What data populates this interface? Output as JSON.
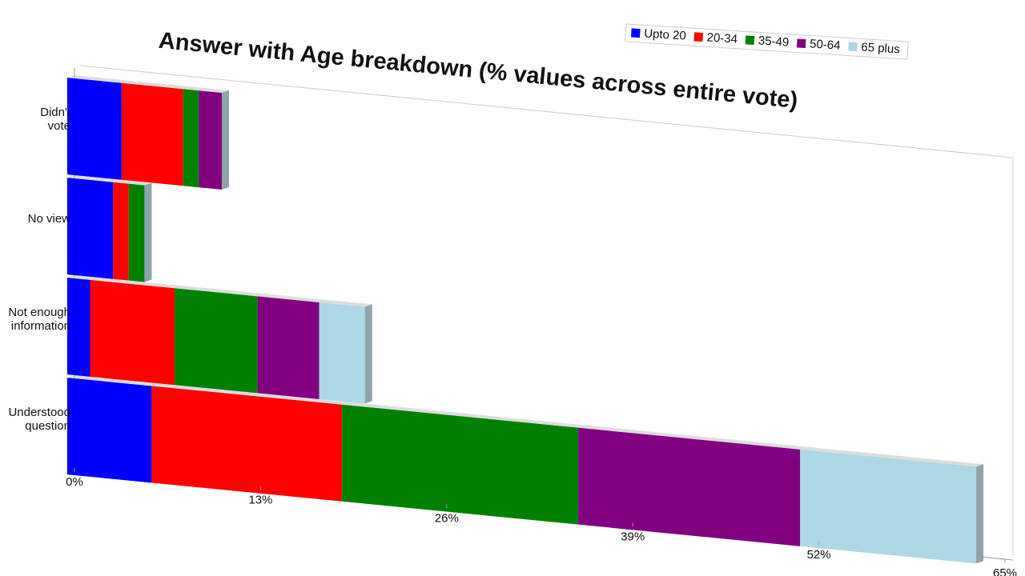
{
  "chart_data": {
    "type": "bar",
    "stacked": true,
    "orientation": "horizontal",
    "title": "Answer with Age breakdown (% values across entire vote)",
    "categories": [
      "Didn't\nvote",
      "No view",
      "Not enough\ninformation",
      "Understood\nquestion"
    ],
    "series": [
      {
        "name": "Upto 20",
        "color": "#0000ff",
        "values": [
          3.8,
          3.2,
          1.6,
          5.9
        ]
      },
      {
        "name": "20-34",
        "color": "#ff0000",
        "values": [
          4.3,
          1.1,
          5.9,
          13.3
        ]
      },
      {
        "name": "35-49",
        "color": "#008000",
        "values": [
          1.1,
          1.1,
          5.8,
          16.5
        ]
      },
      {
        "name": "50-64",
        "color": "#800080",
        "values": [
          1.6,
          0,
          4.3,
          15.5
        ]
      },
      {
        "name": "65 plus",
        "color": "#add8e6",
        "values": [
          0,
          0,
          3.2,
          12.3
        ]
      }
    ],
    "xlim": [
      0,
      65
    ],
    "xticks": [
      {
        "value": 0,
        "label": "0%"
      },
      {
        "value": 13,
        "label": "13%"
      },
      {
        "value": 26,
        "label": "26%"
      },
      {
        "value": 39,
        "label": "39%"
      },
      {
        "value": 52,
        "label": "52%"
      },
      {
        "value": 65,
        "label": "65%"
      }
    ],
    "legend": "top-right",
    "grid": false
  }
}
